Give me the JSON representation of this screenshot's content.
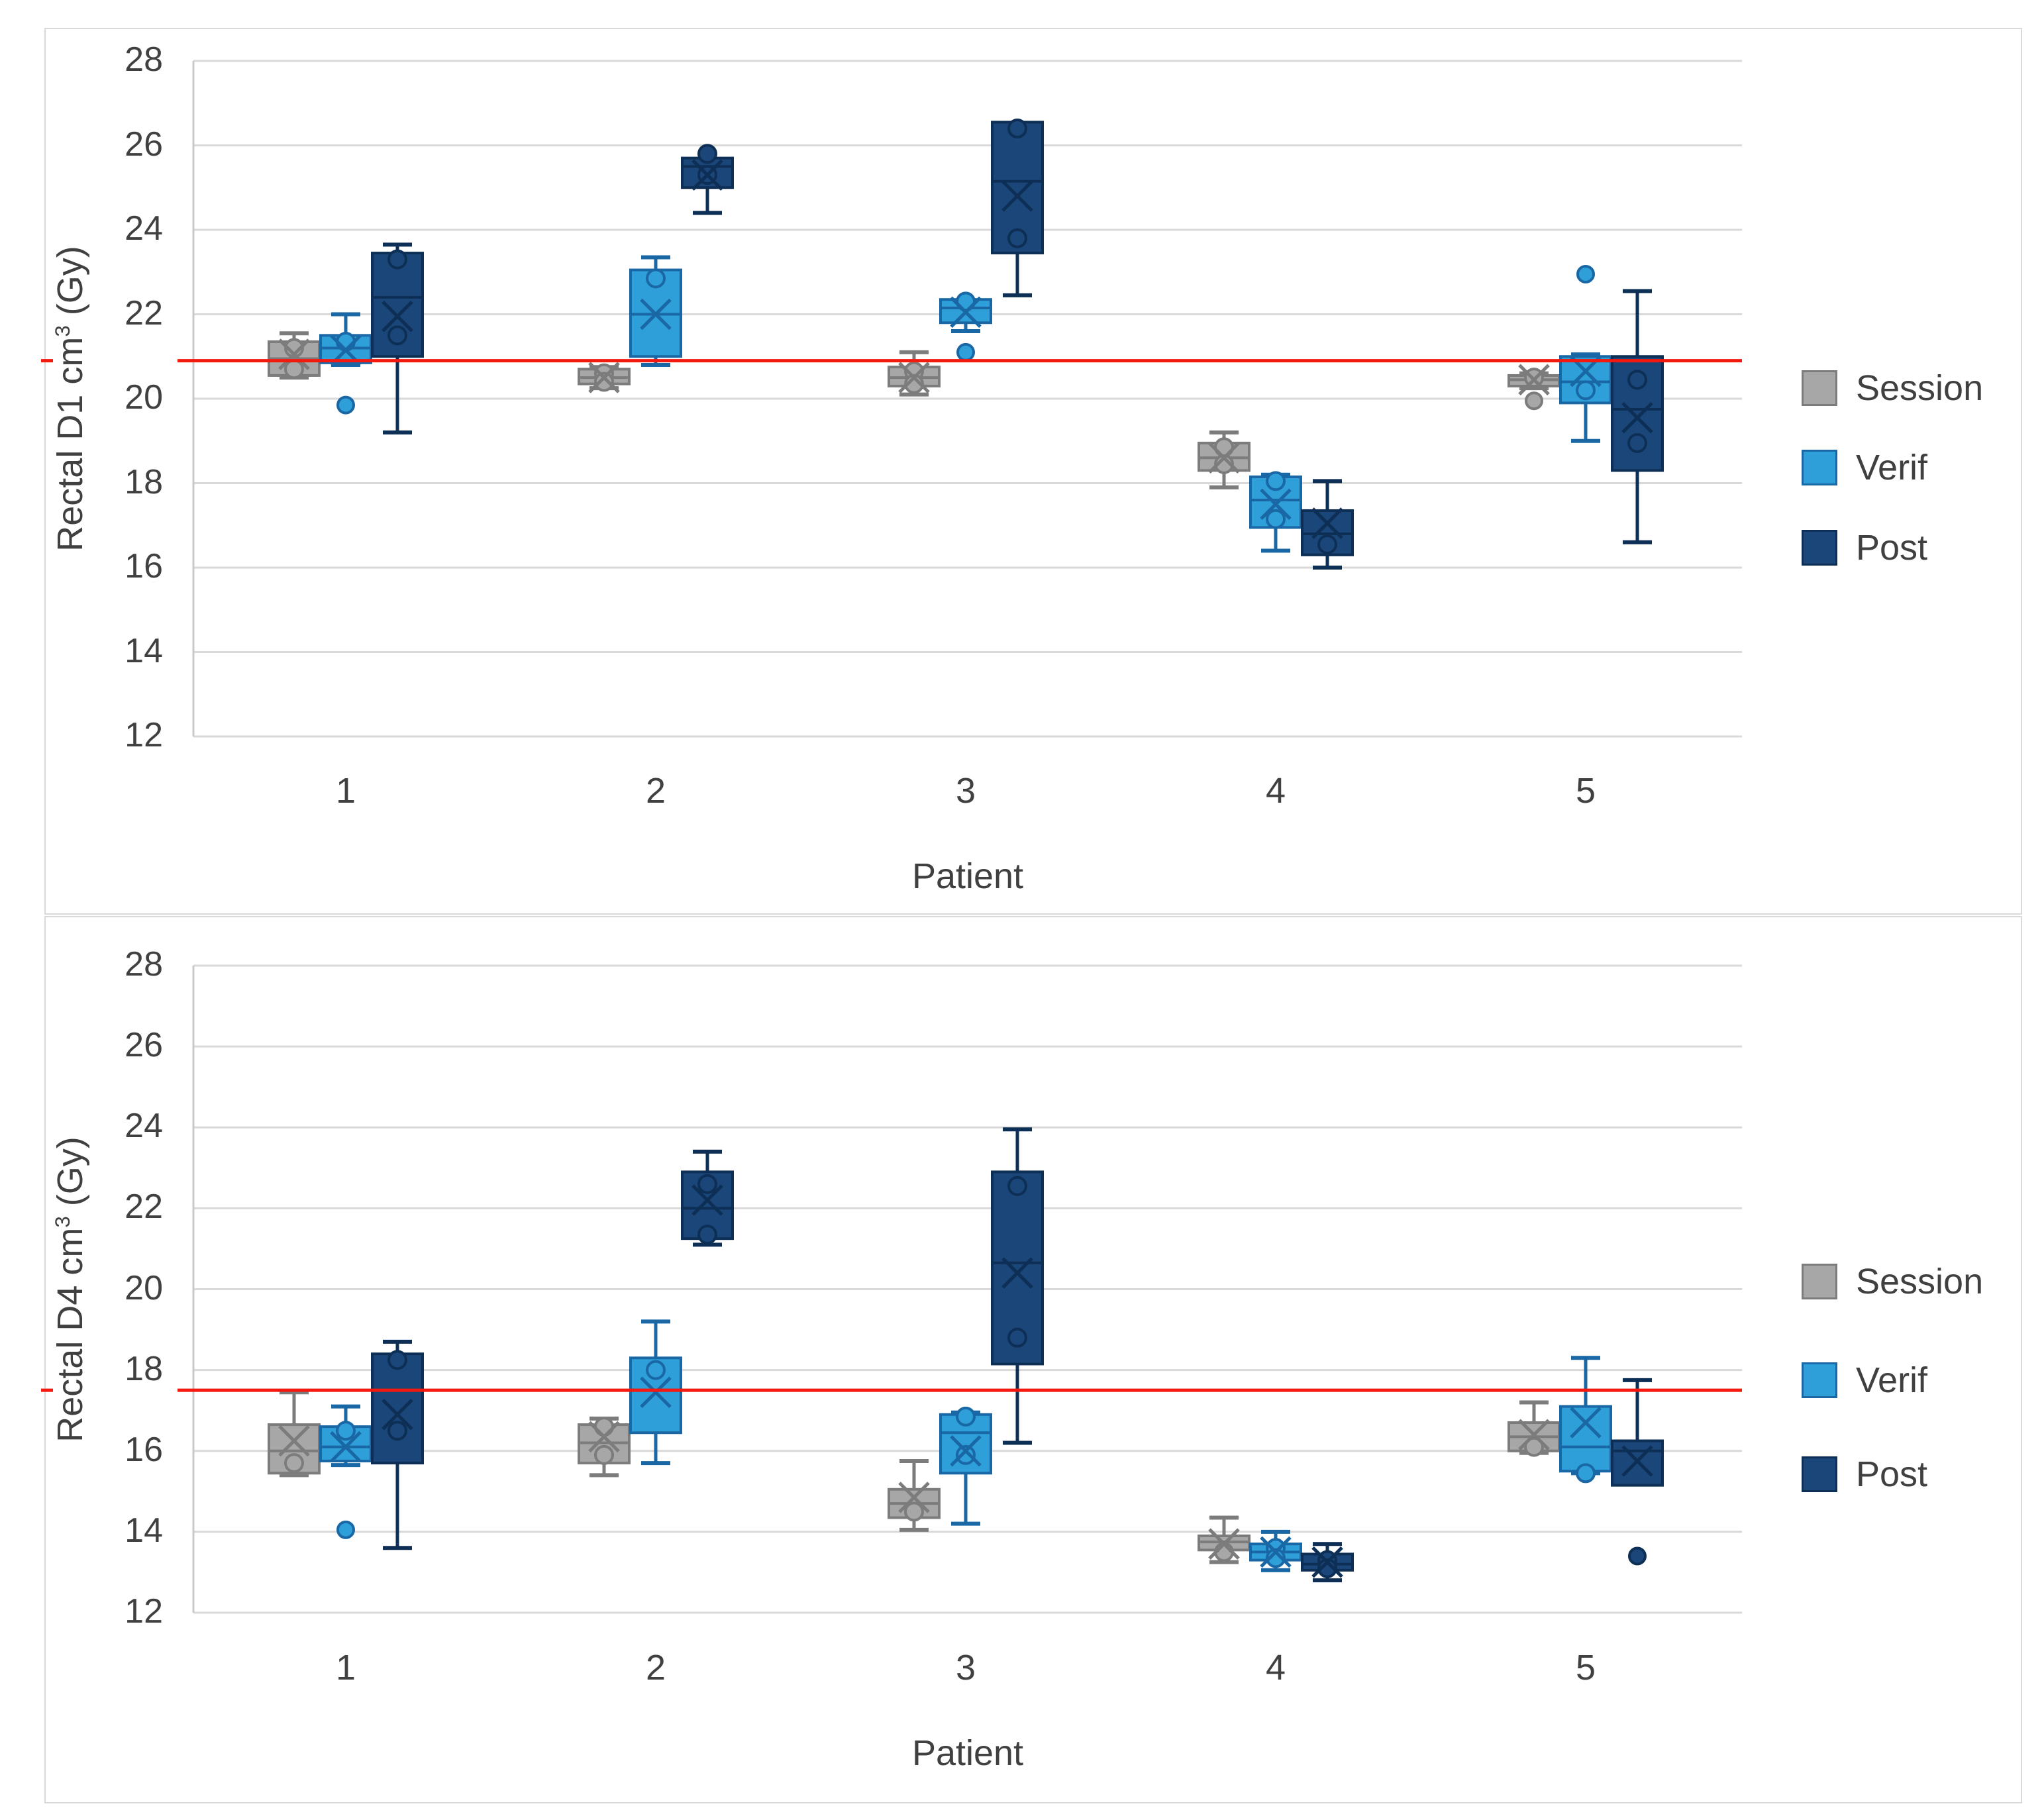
{
  "colors": {
    "series": [
      {
        "name": "Session",
        "fill": "#a7a7a7",
        "stroke": "#7c7c7c"
      },
      {
        "name": "Verif",
        "fill": "#2f9fd9",
        "stroke": "#1968a5"
      },
      {
        "name": "Post",
        "fill": "#1b4679",
        "stroke": "#0e2f55"
      }
    ],
    "reference_line": "#f3190f",
    "gridline": "#d9d9d9",
    "text": "#404040"
  },
  "chart_data": [
    {
      "type": "box",
      "title": "",
      "ylabel_pre": "Rectal D1 cm",
      "ylabel_sup": "3",
      "ylabel_post": " (Gy)",
      "xlabel": "Patient",
      "categories": [
        "1",
        "2",
        "3",
        "4",
        "5"
      ],
      "ylim": [
        12,
        28
      ],
      "y_ticks": [
        28,
        26,
        24,
        22,
        20,
        18,
        16,
        14,
        12
      ],
      "grid": true,
      "legend": [
        "Session",
        "Verif",
        "Post"
      ],
      "legend_position": "right",
      "reference_line": 20.9,
      "series": [
        {
          "name": "Session",
          "boxes": [
            {
              "low": 20.5,
              "q1": 20.55,
              "median": 20.95,
              "q3": 21.35,
              "high": 21.55,
              "mean": 21.05,
              "points": [
                21.2,
                20.7
              ],
              "outliers": []
            },
            {
              "low": 20.25,
              "q1": 20.35,
              "median": 20.5,
              "q3": 20.7,
              "high": 20.75,
              "mean": 20.5,
              "points": [
                20.6,
                20.4
              ],
              "outliers": []
            },
            {
              "low": 20.1,
              "q1": 20.3,
              "median": 20.5,
              "q3": 20.75,
              "high": 21.1,
              "mean": 20.5,
              "points": [
                20.65,
                20.35
              ],
              "outliers": []
            },
            {
              "low": 17.9,
              "q1": 18.3,
              "median": 18.6,
              "q3": 18.95,
              "high": 19.2,
              "mean": 18.6,
              "points": [
                18.85,
                18.45
              ],
              "outliers": []
            },
            {
              "low": 20.25,
              "q1": 20.3,
              "median": 20.45,
              "q3": 20.55,
              "high": 20.6,
              "mean": 20.45,
              "points": [
                20.5
              ],
              "outliers": [
                19.95
              ]
            }
          ]
        },
        {
          "name": "Verif",
          "boxes": [
            {
              "low": 20.8,
              "q1": 20.85,
              "median": 21.2,
              "q3": 21.5,
              "high": 22.0,
              "mean": 21.15,
              "points": [
                21.35
              ],
              "outliers": [
                19.85
              ]
            },
            {
              "low": 20.8,
              "q1": 21.0,
              "median": 22.0,
              "q3": 23.05,
              "high": 23.35,
              "mean": 22.0,
              "points": [
                22.85
              ],
              "outliers": []
            },
            {
              "low": 21.6,
              "q1": 21.8,
              "median": 22.15,
              "q3": 22.35,
              "high": 22.35,
              "mean": 22.05,
              "points": [
                22.3
              ],
              "outliers": [
                21.1
              ]
            },
            {
              "low": 16.4,
              "q1": 16.95,
              "median": 17.6,
              "q3": 18.15,
              "high": 18.2,
              "mean": 17.5,
              "points": [
                18.05,
                17.15
              ],
              "outliers": []
            },
            {
              "low": 19.0,
              "q1": 19.9,
              "median": 20.4,
              "q3": 21.0,
              "high": 21.05,
              "mean": 20.65,
              "points": [
                20.2
              ],
              "outliers": [
                22.95
              ]
            }
          ]
        },
        {
          "name": "Post",
          "boxes": [
            {
              "low": 19.2,
              "q1": 21.0,
              "median": 22.4,
              "q3": 23.45,
              "high": 23.65,
              "mean": 21.95,
              "points": [
                23.3,
                21.5
              ],
              "outliers": []
            },
            {
              "low": 24.4,
              "q1": 25.0,
              "median": 25.5,
              "q3": 25.7,
              "high": 25.7,
              "mean": 25.3,
              "points": [
                25.8,
                25.3
              ],
              "outliers": []
            },
            {
              "low": 22.45,
              "q1": 23.45,
              "median": 25.15,
              "q3": 26.55,
              "high": 26.55,
              "mean": 24.8,
              "points": [
                26.4,
                23.8
              ],
              "outliers": []
            },
            {
              "low": 16.0,
              "q1": 16.3,
              "median": 16.8,
              "q3": 17.35,
              "high": 18.05,
              "mean": 17.05,
              "points": [
                16.55
              ],
              "outliers": []
            },
            {
              "low": 16.6,
              "q1": 18.3,
              "median": 19.75,
              "q3": 21.0,
              "high": 22.55,
              "mean": 19.55,
              "points": [
                20.45,
                18.95
              ],
              "outliers": []
            }
          ]
        }
      ]
    },
    {
      "type": "box",
      "title": "",
      "ylabel_pre": "Rectal D4 cm",
      "ylabel_sup": "3",
      "ylabel_post": " (Gy)",
      "xlabel": "Patient",
      "categories": [
        "1",
        "2",
        "3",
        "4",
        "5"
      ],
      "ylim": [
        12,
        28
      ],
      "y_ticks": [
        28,
        26,
        24,
        22,
        20,
        18,
        16,
        14,
        12
      ],
      "grid": true,
      "legend": [
        "Session",
        "Verif",
        "Post"
      ],
      "legend_position": "right",
      "reference_line": 17.5,
      "series": [
        {
          "name": "Session",
          "boxes": [
            {
              "low": 15.4,
              "q1": 15.45,
              "median": 16.0,
              "q3": 16.65,
              "high": 17.45,
              "mean": 16.25,
              "points": [
                15.7
              ],
              "outliers": []
            },
            {
              "low": 15.4,
              "q1": 15.7,
              "median": 16.2,
              "q3": 16.65,
              "high": 16.8,
              "mean": 16.35,
              "points": [
                16.6,
                15.9
              ],
              "outliers": []
            },
            {
              "low": 14.05,
              "q1": 14.35,
              "median": 14.7,
              "q3": 15.05,
              "high": 15.75,
              "mean": 14.85,
              "points": [
                14.5
              ],
              "outliers": []
            },
            {
              "low": 13.25,
              "q1": 13.55,
              "median": 13.75,
              "q3": 13.9,
              "high": 14.35,
              "mean": 13.7,
              "points": [
                13.5
              ],
              "outliers": []
            },
            {
              "low": 15.95,
              "q1": 16.0,
              "median": 16.35,
              "q3": 16.7,
              "high": 17.2,
              "mean": 16.4,
              "points": [
                16.1
              ],
              "outliers": []
            }
          ]
        },
        {
          "name": "Verif",
          "boxes": [
            {
              "low": 15.65,
              "q1": 15.75,
              "median": 16.1,
              "q3": 16.6,
              "high": 17.1,
              "mean": 16.1,
              "points": [
                16.5
              ],
              "outliers": [
                14.05
              ]
            },
            {
              "low": 15.7,
              "q1": 16.45,
              "median": 17.5,
              "q3": 18.3,
              "high": 19.2,
              "mean": 17.45,
              "points": [
                18.0
              ],
              "outliers": []
            },
            {
              "low": 14.2,
              "q1": 15.45,
              "median": 16.45,
              "q3": 16.9,
              "high": 16.95,
              "mean": 16.0,
              "points": [
                16.85,
                15.9
              ],
              "outliers": []
            },
            {
              "low": 13.05,
              "q1": 13.3,
              "median": 13.5,
              "q3": 13.7,
              "high": 14.0,
              "mean": 13.5,
              "points": [
                13.6,
                13.35
              ],
              "outliers": []
            },
            {
              "low": 15.45,
              "q1": 15.5,
              "median": 16.1,
              "q3": 17.1,
              "high": 18.3,
              "mean": 16.7,
              "points": [
                15.45
              ],
              "outliers": []
            }
          ]
        },
        {
          "name": "Post",
          "boxes": [
            {
              "low": 13.6,
              "q1": 15.7,
              "median": 17.5,
              "q3": 18.4,
              "high": 18.7,
              "mean": 16.9,
              "points": [
                18.25,
                16.5
              ],
              "outliers": []
            },
            {
              "low": 21.1,
              "q1": 21.25,
              "median": 22.0,
              "q3": 22.9,
              "high": 23.4,
              "mean": 22.2,
              "points": [
                22.6,
                21.35
              ],
              "outliers": []
            },
            {
              "low": 16.2,
              "q1": 18.15,
              "median": 20.65,
              "q3": 22.9,
              "high": 23.95,
              "mean": 20.4,
              "points": [
                22.55,
                18.8
              ],
              "outliers": []
            },
            {
              "low": 12.8,
              "q1": 13.05,
              "median": 13.2,
              "q3": 13.45,
              "high": 13.7,
              "mean": 13.25,
              "points": [
                13.3,
                13.1
              ],
              "outliers": []
            },
            {
              "low": 15.15,
              "q1": 15.15,
              "median": 16.0,
              "q3": 16.25,
              "high": 17.75,
              "mean": 15.75,
              "points": [],
              "outliers": [
                13.4
              ]
            }
          ]
        }
      ]
    }
  ]
}
